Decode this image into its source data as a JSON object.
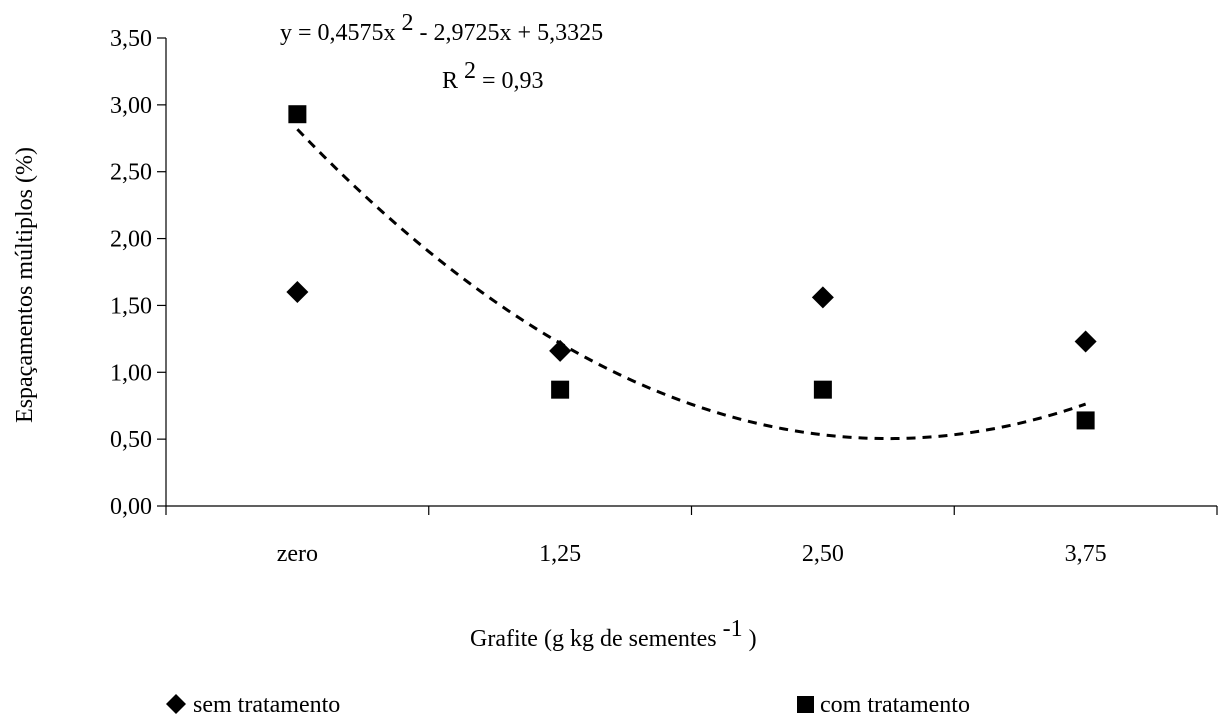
{
  "chart_data": {
    "type": "scatter",
    "categories": [
      "zero",
      "1,25",
      "2,50",
      "3,75"
    ],
    "x": [
      1,
      2,
      3,
      4
    ],
    "xlabel": "Grafite (g kg de sementes",
    "xlabel_sup": "-1",
    "xlabel_suffix": " )",
    "ylabel": "Espaçamentos múltiplos (%)",
    "ylim": [
      0,
      3.5
    ],
    "yticks": [
      "0,00",
      "0,50",
      "1,00",
      "1,50",
      "2,00",
      "2,50",
      "3,00",
      "3,50"
    ],
    "series": [
      {
        "name": "sem tratamento",
        "marker": "diamond",
        "color": "#000000",
        "values": [
          1.6,
          1.16,
          1.56,
          1.23
        ]
      },
      {
        "name": "com tratamento",
        "marker": "square",
        "color": "#000000",
        "values": [
          2.93,
          0.87,
          0.87,
          0.64
        ]
      }
    ],
    "trendline": {
      "series": "com tratamento",
      "type": "polynomial",
      "coefficients": [
        0.4575,
        -2.9725,
        5.3325
      ],
      "equation_text_before": "y = 0,4575x",
      "equation_sup": "2",
      "equation_text_after": "  - 2,9725x + 5,3325",
      "r2_prefix": "R",
      "r2_sup": "2",
      "r2_suffix": " = 0,93"
    },
    "grid": false,
    "legend_position": "bottom"
  }
}
